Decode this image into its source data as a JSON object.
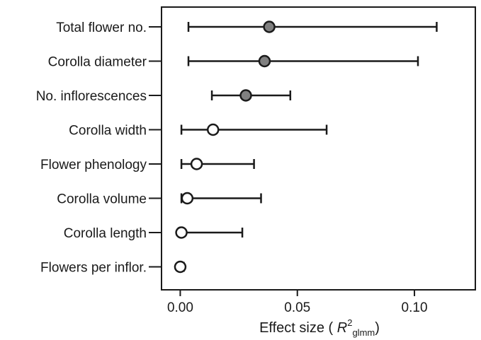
{
  "chart_data": {
    "type": "scatter",
    "subtype": "forest-plot",
    "xlabel_prefix": "Effect size ( ",
    "xlabel_var": "R",
    "xlabel_sup": "2",
    "xlabel_sub": "glmm",
    "xlabel_suffix": ")",
    "xlim": [
      -0.008,
      0.126
    ],
    "xticks": [
      0.0,
      0.05,
      0.1
    ],
    "xtick_labels": [
      "0.00",
      "0.05",
      "0.10"
    ],
    "grid": false,
    "legend": "none",
    "categories": [
      "Total flower no.",
      "Corolla diameter",
      "No. inflorescences",
      "Corolla width",
      "Flower phenology",
      "Corolla volume",
      "Corolla length",
      "Flowers per inflor."
    ],
    "estimates": [
      0.038,
      0.036,
      0.028,
      0.014,
      0.007,
      0.003,
      0.0005,
      0.0
    ],
    "ci_low": [
      0.0035,
      0.0035,
      0.0135,
      0.0005,
      0.0005,
      0.0005,
      0.0,
      0.0
    ],
    "ci_high": [
      0.1095,
      0.1015,
      0.047,
      0.0625,
      0.0315,
      0.0345,
      0.0265,
      0.0015
    ],
    "significant": [
      true,
      true,
      true,
      false,
      false,
      false,
      false,
      false
    ],
    "colors": {
      "significant_fill": "#808080",
      "nonsignificant_fill": "#ffffff",
      "stroke": "#1a1a1a"
    }
  }
}
